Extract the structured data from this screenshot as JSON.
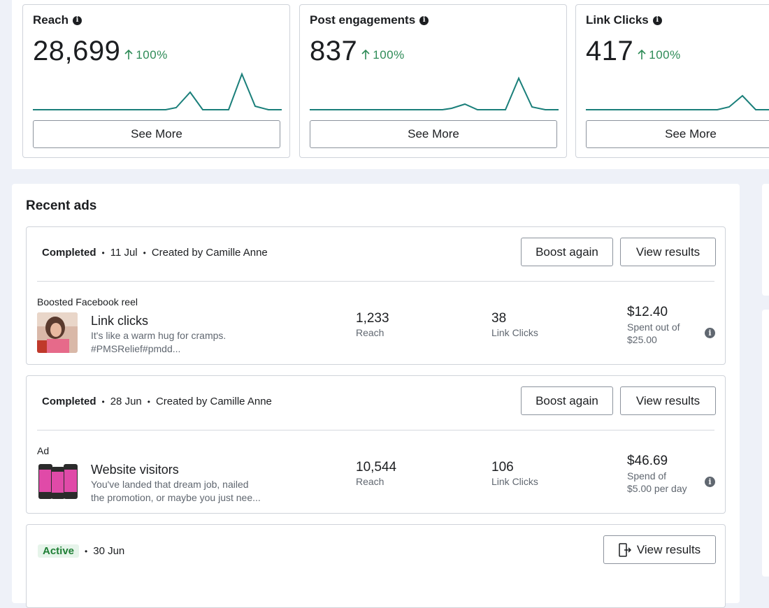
{
  "metrics": [
    {
      "title": "Reach",
      "value": "28,699",
      "change": "100%",
      "button": "See More"
    },
    {
      "title": "Post engagements",
      "value": "837",
      "change": "100%",
      "button": "See More"
    },
    {
      "title": "Link Clicks",
      "value": "417",
      "change": "100%",
      "button": "See More"
    }
  ],
  "recent_ads": {
    "title": "Recent ads",
    "ads": [
      {
        "status": "Completed",
        "date": "11 Jul",
        "creator": "Created by Camille Anne",
        "boost_label": "Boost again",
        "view_label": "View results",
        "kind": "Boosted Facebook reel",
        "name": "Link clicks",
        "desc_line1": "It's like a warm hug for cramps.",
        "desc_line2": "#PMSRelief#pmdd...",
        "reach_value": "1,233",
        "reach_label": "Reach",
        "clicks_value": "38",
        "clicks_label": "Link Clicks",
        "spent_value": "$12.40",
        "spent_line1": "Spent out of",
        "spent_line2": "$25.00"
      },
      {
        "status": "Completed",
        "date": "28 Jun",
        "creator": "Created by Camille Anne",
        "boost_label": "Boost again",
        "view_label": "View results",
        "kind": "Ad",
        "name": "Website visitors",
        "desc_line1": "You've landed that dream job, nailed",
        "desc_line2": "the promotion, or maybe you just nee...",
        "reach_value": "10,544",
        "reach_label": "Reach",
        "clicks_value": "106",
        "clicks_label": "Link Clicks",
        "spent_value": "$46.69",
        "spent_line1": "Spend of",
        "spent_line2": "$5.00 per day"
      },
      {
        "status": "Active",
        "date": "30 Jun",
        "view_label": "View results"
      }
    ]
  },
  "colors": {
    "accent_green": "#2e8b57",
    "spark_line": "#1a7f7a",
    "border": "#cfd3da"
  },
  "icons": {
    "info": "info-icon",
    "arrow_up": "arrow-up-icon",
    "exit": "open-external-icon"
  }
}
